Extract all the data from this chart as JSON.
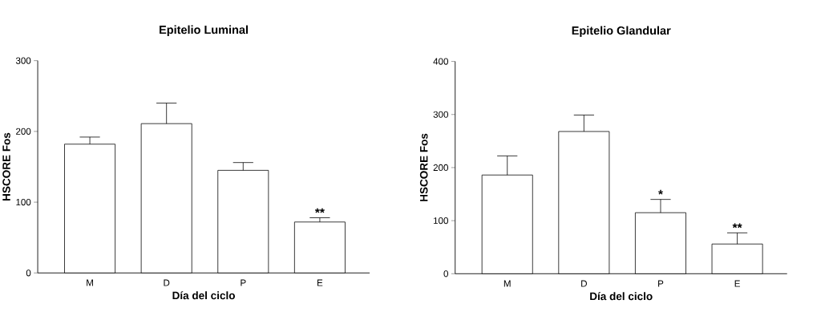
{
  "chart_data": [
    {
      "type": "bar",
      "title": "Epitelio Luminal",
      "xlabel": "Día del ciclo",
      "ylabel": "HSCORE Fos",
      "categories": [
        "M",
        "D",
        "P",
        "E"
      ],
      "values": [
        182,
        211,
        145,
        72
      ],
      "errors": [
        10,
        29,
        11,
        6
      ],
      "color": "#ffffff",
      "ylim": [
        0,
        300
      ],
      "yticks": [
        0,
        100,
        200,
        300
      ],
      "annotations": [
        {
          "text": "**",
          "x": "E",
          "y": 78
        }
      ]
    },
    {
      "type": "bar",
      "title": "Epitelio Glandular",
      "xlabel": "Día del ciclo",
      "ylabel": "HSCORE Fos",
      "categories": [
        "M",
        "D",
        "P",
        "E"
      ],
      "values": [
        186,
        268,
        115,
        56
      ],
      "errors": [
        36,
        31,
        25,
        21
      ],
      "color": "#ffffff",
      "ylim": [
        0,
        400
      ],
      "yticks": [
        0,
        100,
        200,
        300,
        400
      ],
      "annotations": [
        {
          "text": "*",
          "x": "P",
          "y": 140
        },
        {
          "text": "**",
          "x": "E",
          "y": 77
        }
      ]
    }
  ]
}
